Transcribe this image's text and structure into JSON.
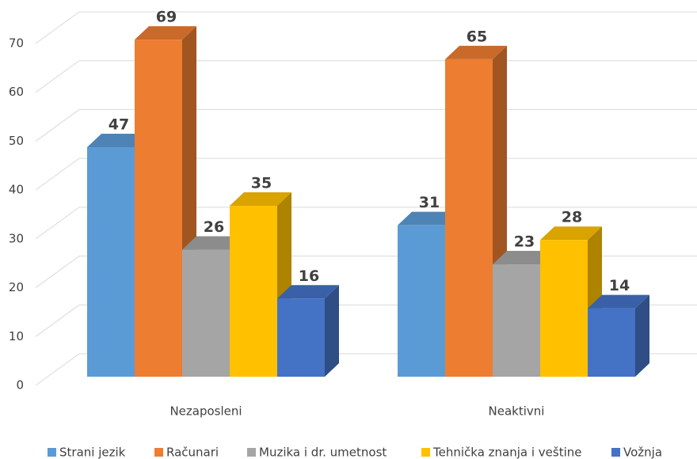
{
  "chart_data": {
    "type": "bar3d",
    "categories": [
      "Nezaposleni",
      "Neaktivni"
    ],
    "series": [
      {
        "name": "Strani jezik",
        "color": "#5b9bd5",
        "values": [
          47,
          31
        ]
      },
      {
        "name": "Računari",
        "color": "#ed7d31",
        "values": [
          69,
          65
        ]
      },
      {
        "name": "Muzika i dr. umetnost",
        "color": "#a5a5a5",
        "values": [
          26,
          23
        ]
      },
      {
        "name": "Tehnička znanja i veštine",
        "color": "#ffc000",
        "values": [
          35,
          28
        ]
      },
      {
        "name": "Vožnja",
        "color": "#4472c4",
        "values": [
          16,
          14
        ]
      }
    ],
    "ylim": [
      0,
      70
    ],
    "yticks": [
      0,
      10,
      20,
      30,
      40,
      50,
      60,
      70
    ],
    "grid": true,
    "legend": "bottom"
  }
}
